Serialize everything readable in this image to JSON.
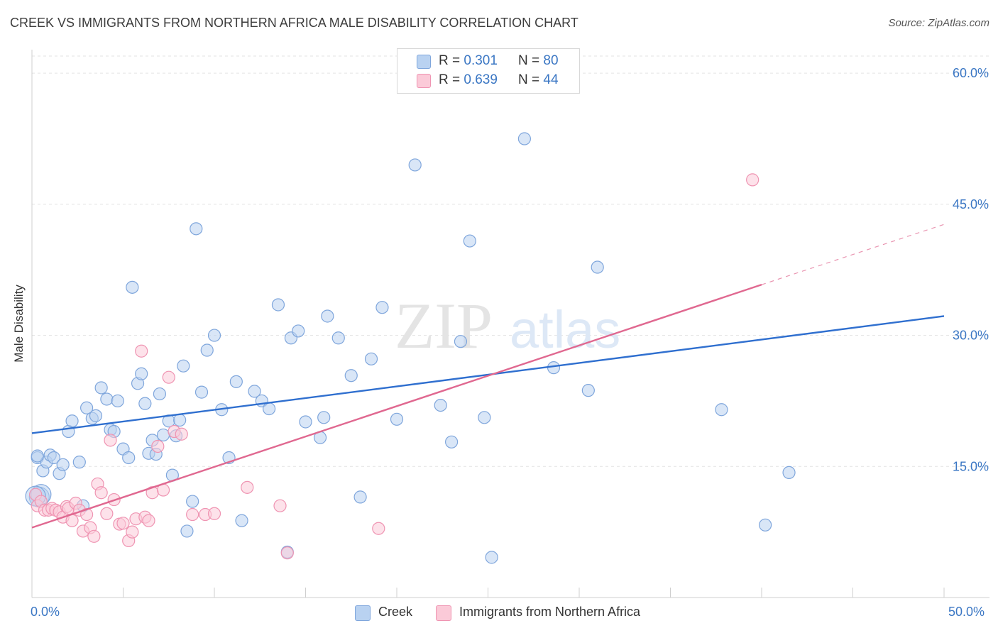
{
  "title": "CREEK VS IMMIGRANTS FROM NORTHERN AFRICA MALE DISABILITY CORRELATION CHART",
  "source": "Source: ZipAtlas.com",
  "chart_data": {
    "type": "scatter",
    "ylabel": "Male Disability",
    "xlim": [
      0,
      50
    ],
    "ylim": [
      0,
      62
    ],
    "y_ticks": [
      15,
      30,
      45,
      60
    ],
    "y_tick_labels": [
      "15.0%",
      "30.0%",
      "45.0%",
      "60.0%"
    ],
    "x_min_label": "0.0%",
    "x_max_label": "50.0%",
    "grid": true,
    "watermark": {
      "part1": "ZIP",
      "part2": "atlas"
    },
    "legend_stats": [
      {
        "r_label": "R =",
        "r_value": "0.301",
        "n_label": "N =",
        "n_value": "80"
      },
      {
        "r_label": "R =",
        "r_value": "0.639",
        "n_label": "N =",
        "n_value": "44"
      }
    ],
    "series": [
      {
        "name": "Creek",
        "color": "#8fb5e6",
        "trend_color": "#2f6fcf",
        "trend": {
          "x0": 0,
          "y0": 18.8,
          "x1": 50,
          "y1": 32.2
        },
        "x": [
          0.3,
          0.6,
          0.8,
          1.0,
          1.2,
          1.5,
          1.7,
          2.0,
          2.2,
          2.6,
          2.8,
          3.0,
          3.3,
          3.5,
          3.8,
          4.1,
          4.3,
          4.5,
          4.7,
          5.0,
          5.3,
          5.5,
          5.8,
          6.0,
          6.2,
          6.4,
          6.6,
          6.8,
          7.0,
          7.2,
          7.5,
          7.7,
          7.9,
          8.1,
          8.3,
          8.5,
          8.8,
          9.0,
          9.3,
          9.6,
          10.0,
          10.4,
          10.8,
          11.2,
          11.5,
          12.2,
          12.6,
          13.0,
          13.5,
          14.0,
          14.2,
          14.6,
          15.0,
          15.8,
          16.0,
          16.2,
          16.8,
          17.5,
          18.0,
          18.6,
          19.2,
          20.0,
          21.0,
          22.4,
          23.0,
          23.5,
          24.0,
          24.8,
          25.2,
          27.0,
          28.6,
          30.5,
          31.0,
          37.8,
          40.2,
          41.5
        ],
        "y": [
          16.0,
          14.5,
          15.5,
          16.3,
          16.0,
          14.2,
          15.2,
          19.0,
          20.2,
          15.5,
          10.5,
          21.7,
          20.5,
          20.8,
          24.0,
          22.7,
          19.2,
          19.0,
          22.5,
          17.0,
          16.0,
          35.5,
          24.5,
          25.6,
          22.2,
          16.5,
          18.0,
          16.4,
          23.3,
          18.6,
          20.2,
          14.0,
          18.5,
          20.3,
          26.5,
          7.6,
          11.0,
          42.2,
          23.5,
          28.3,
          30.0,
          21.5,
          16.0,
          24.7,
          8.8,
          23.6,
          22.5,
          21.6,
          33.5,
          5.2,
          29.7,
          30.5,
          20.1,
          18.3,
          20.6,
          32.2,
          29.7,
          25.4,
          11.5,
          27.3,
          33.2,
          20.4,
          49.5,
          22.0,
          17.8,
          29.3,
          40.8,
          20.6,
          4.6,
          52.5,
          26.3,
          23.7,
          37.8,
          21.5,
          8.3,
          14.3
        ],
        "note_extra_points": [
          [
            0.3,
            16.2
          ],
          [
            0.4,
            11.5
          ],
          [
            0.5,
            11.8
          ],
          [
            0.2,
            11.6
          ]
        ]
      },
      {
        "name": "Immigrants from Northern Africa",
        "color": "#f5a8c0",
        "trend_color": "#e06890",
        "trend": {
          "x0": 0,
          "y0": 8.0,
          "x1": 40.0,
          "y1": 35.8
        },
        "trend_dash": {
          "x0": 40.0,
          "y0": 35.8,
          "x1": 50,
          "y1": 42.7
        },
        "x": [
          0.2,
          0.3,
          0.5,
          0.7,
          0.9,
          1.1,
          1.3,
          1.5,
          1.7,
          1.9,
          2.0,
          2.2,
          2.4,
          2.6,
          2.8,
          3.0,
          3.2,
          3.4,
          3.6,
          3.8,
          4.1,
          4.3,
          4.5,
          4.8,
          5.0,
          5.3,
          5.5,
          5.7,
          6.0,
          6.2,
          6.4,
          6.6,
          6.9,
          7.2,
          7.5,
          7.8,
          8.2,
          8.8,
          9.5,
          10.0,
          11.8,
          13.6,
          14.0,
          19.0,
          39.5
        ],
        "y": [
          11.8,
          10.5,
          11.0,
          10.0,
          10.0,
          10.2,
          10.0,
          9.8,
          9.2,
          10.4,
          10.2,
          8.8,
          10.8,
          10.0,
          7.6,
          9.5,
          8.0,
          7.0,
          13.0,
          12.0,
          9.6,
          18.0,
          11.2,
          8.4,
          8.5,
          6.5,
          7.5,
          9.0,
          28.2,
          9.2,
          8.8,
          12.0,
          17.3,
          12.3,
          25.2,
          19.0,
          18.7,
          9.5,
          9.5,
          9.6,
          12.6,
          10.5,
          5.1,
          7.9,
          47.8
        ]
      }
    ]
  },
  "legend": {
    "creek": "Creek",
    "immigrants": "Immigrants from Northern Africa"
  }
}
